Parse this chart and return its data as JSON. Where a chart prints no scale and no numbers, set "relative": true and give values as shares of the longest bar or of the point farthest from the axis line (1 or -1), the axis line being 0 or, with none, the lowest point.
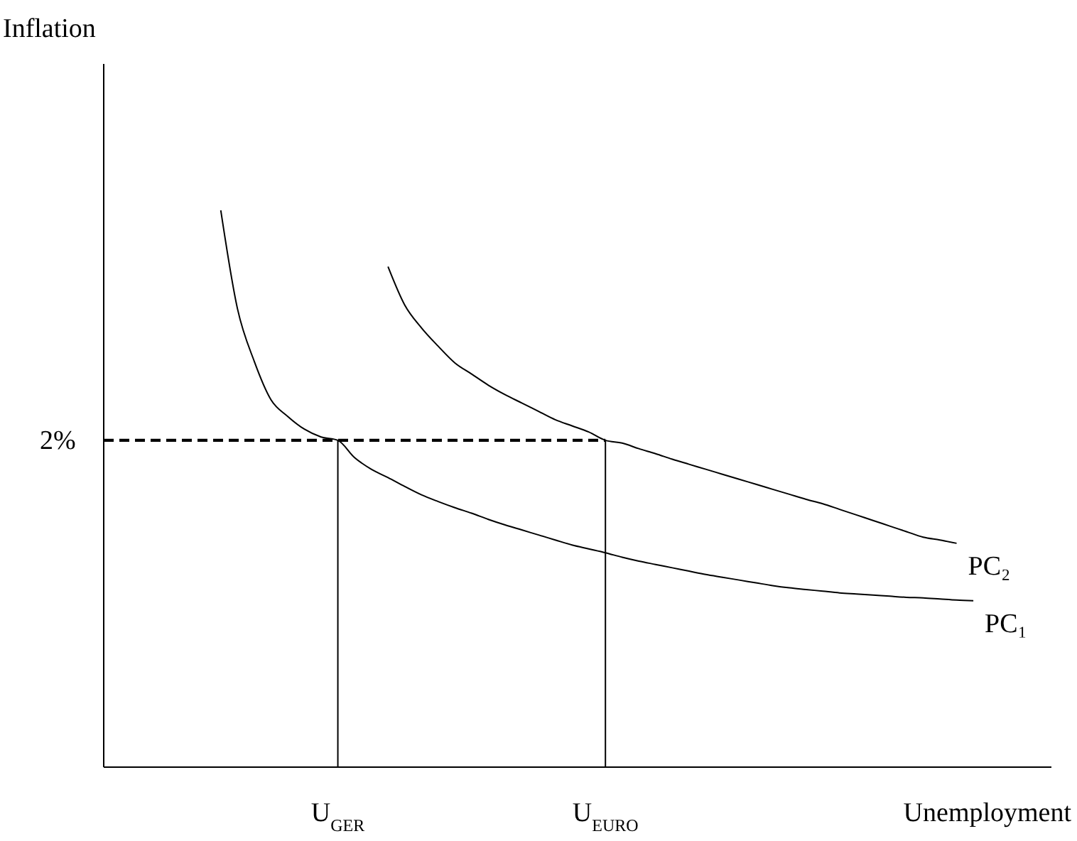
{
  "chart_data": {
    "type": "line",
    "relative": true,
    "annotations": [
      "Inflation",
      "2%"
    ],
    "xlabel": "Unemployment",
    "grid": false,
    "marker": "none",
    "categories": [
      null,
      null,
      null,
      null,
      null,
      null,
      null,
      null,
      null,
      null,
      null,
      null,
      null,
      null,
      "U$_{GER}$",
      null,
      null,
      null,
      null,
      null,
      null,
      null,
      null,
      null,
      null,
      null,
      null,
      null,
      null,
      null,
      "U$_{EURO}$",
      null,
      null,
      null,
      null,
      null,
      null,
      null,
      null,
      null,
      null,
      null,
      null,
      null,
      null,
      null,
      null,
      null,
      null,
      null,
      null,
      null,
      null,
      null,
      null,
      null,
      null
    ],
    "ref_lines": [
      {
        "axis": "y",
        "value": 0.587,
        "line_style": "dashed",
        "color": "#000000"
      },
      {
        "axis": "x",
        "value": "U$_{GER}$",
        "line_style": "solid",
        "color": "#000000"
      },
      {
        "axis": "x",
        "value": "U$_{EURO}$",
        "line_style": "solid",
        "color": "#000000"
      }
    ],
    "series": [
      {
        "name": "PC₁",
        "color": "#000000",
        "line_style": "solid",
        "values": [
          null,
          null,
          null,
          null,
          null,
          null,
          null,
          1.0,
          0.823,
          0.729,
          0.66,
          0.63,
          0.607,
          0.593,
          0.587,
          0.556,
          0.535,
          0.52,
          0.504,
          0.489,
          0.477,
          0.466,
          0.456,
          0.445,
          0.435,
          0.426,
          0.417,
          0.408,
          0.399,
          0.392,
          0.385,
          0.377,
          0.37,
          0.364,
          0.358,
          0.352,
          0.346,
          0.341,
          0.336,
          0.331,
          0.326,
          0.322,
          0.319,
          0.316,
          0.313,
          0.311,
          0.309,
          0.307,
          0.305,
          0.304,
          0.302,
          0.3,
          0.299,
          null,
          null,
          null,
          null
        ]
      },
      {
        "name": "PC₂",
        "color": "#000000",
        "line_style": "solid",
        "values": [
          null,
          null,
          null,
          null,
          null,
          null,
          null,
          null,
          null,
          null,
          null,
          null,
          null,
          null,
          null,
          null,
          null,
          0.899,
          0.83,
          0.789,
          0.756,
          0.726,
          0.706,
          0.686,
          0.669,
          0.654,
          0.639,
          0.624,
          0.613,
          0.602,
          0.587,
          0.582,
          0.572,
          0.563,
          0.553,
          0.544,
          0.535,
          0.526,
          0.517,
          0.508,
          0.499,
          0.49,
          0.481,
          0.473,
          0.463,
          0.453,
          0.443,
          0.433,
          0.423,
          0.413,
          0.408,
          0.402,
          null,
          null,
          null,
          null,
          null
        ]
      }
    ]
  }
}
